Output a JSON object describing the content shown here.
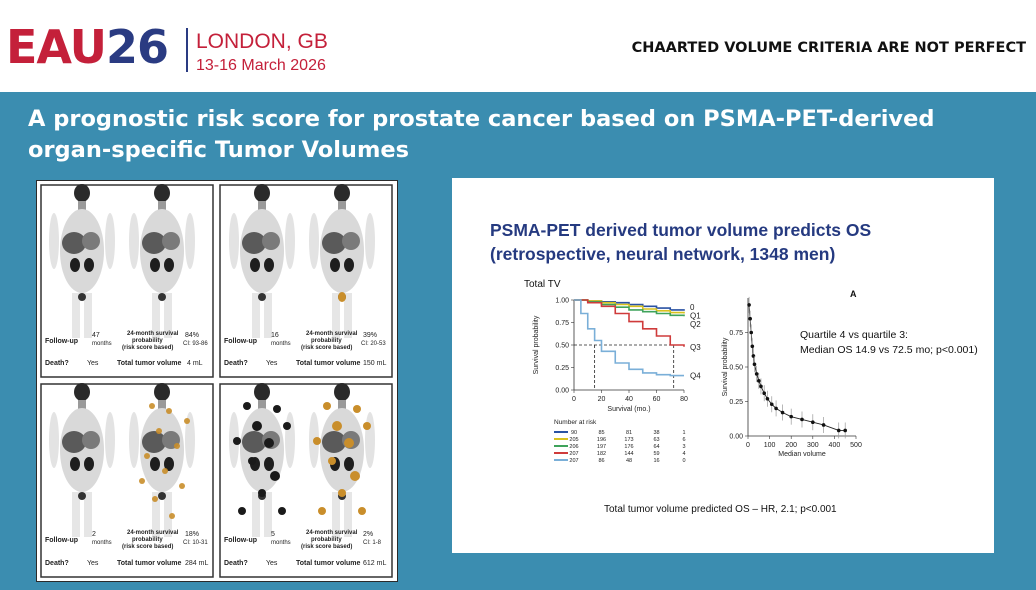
{
  "header": {
    "logo_eau": "EAU",
    "logo_num": "26",
    "city": "LONDON, GB",
    "dates": "13-16 March 2026",
    "headline": "CHAARTED VOLUME CRITERIA ARE NOT PERFECT"
  },
  "title": "A prognostic risk score for prostate cancer based on PSMA-PET-derived organ-specific Tumor Volumes",
  "pet_cases": [
    {
      "followup_label": "Follow-up",
      "followup_value": "47",
      "followup_unit": "months",
      "surv_label": "24-month survival probability (risk score based)",
      "surv_value": "84%",
      "ci": "CI: 93-86",
      "death_label": "Death?",
      "death_value": "Yes",
      "ttv_label": "Total tumor volume",
      "ttv_value": "4 mL"
    },
    {
      "followup_label": "Follow-up",
      "followup_value": "16",
      "followup_unit": "months",
      "surv_label": "24-month survival probability (risk score based)",
      "surv_value": "39%",
      "ci": "CI: 20-53",
      "death_label": "Death?",
      "death_value": "Yes",
      "ttv_label": "Total tumor volume",
      "ttv_value": "150 mL"
    },
    {
      "followup_label": "Follow-up",
      "followup_value": "2",
      "followup_unit": "months",
      "surv_label": "24-month survival probability (risk score based)",
      "surv_value": "18%",
      "ci": "CI: 10-31",
      "death_label": "Death?",
      "death_value": "Yes",
      "ttv_label": "Total tumor volume",
      "ttv_value": "284 mL"
    },
    {
      "followup_label": "Follow-up",
      "followup_value": "5",
      "followup_unit": "months",
      "surv_label": "24-month survival probability (risk score based)",
      "surv_value": "2%",
      "ci": "CI: 1-8",
      "death_label": "Death?",
      "death_value": "Yes",
      "ttv_label": "Total tumor volume",
      "ttv_value": "612 mL"
    }
  ],
  "slide": {
    "title_line1": "PSMA-PET derived tumor volume predicts OS",
    "title_line2": "(retrospective, neural network, 1348 men)",
    "km_title": "Total TV",
    "km_ylabel": "Survival probability",
    "km_xlabel": "Survival (mo.)",
    "km_xticks": [
      "0",
      "20",
      "40",
      "60",
      "80"
    ],
    "km_yticks": [
      "0.00",
      "0.25",
      "0.50",
      "0.75",
      "1.00"
    ],
    "group_labels": [
      "0",
      "Q1",
      "Q2",
      "Q3",
      "Q4"
    ],
    "number_at_risk_label": "Number at risk",
    "risk_table": [
      [
        "90",
        "85",
        "81",
        "38",
        "1"
      ],
      [
        "205",
        "196",
        "173",
        "63",
        "6"
      ],
      [
        "206",
        "197",
        "176",
        "64",
        "3"
      ],
      [
        "207",
        "182",
        "144",
        "59",
        "4"
      ],
      [
        "207",
        "86",
        "48",
        "16",
        "0"
      ]
    ],
    "series_colors": [
      "#2a52a3",
      "#d9c21f",
      "#3fa35b",
      "#cf3b3b",
      "#7aafd8"
    ],
    "panel_a_label": "A",
    "note_line1": "Quartile 4 vs quartile 3:",
    "note_line2": "Median OS 14.9 vs 72.5 mo; p<0.001)",
    "scatter_ylabel": "Survival probability",
    "scatter_xlabel": "Median volume",
    "scatter_xticks": [
      "0",
      "100",
      "200",
      "300",
      "400",
      "500"
    ],
    "scatter_yticks": [
      "0.00",
      "0.25",
      "0.50",
      "0.75"
    ],
    "bottom_text": "Total tumor volume predicted OS – HR, 2.1; p<0.001"
  },
  "chart_data": [
    {
      "type": "line",
      "title": "Total TV",
      "xlabel": "Survival (mo.)",
      "ylabel": "Survival probability",
      "xlim": [
        0,
        80
      ],
      "ylim": [
        0,
        1
      ],
      "series": [
        {
          "name": "0",
          "x": [
            0,
            10,
            20,
            30,
            40,
            50,
            60,
            70,
            80
          ],
          "values": [
            1.0,
            0.99,
            0.98,
            0.97,
            0.95,
            0.93,
            0.91,
            0.89,
            0.88
          ]
        },
        {
          "name": "Q1",
          "x": [
            0,
            10,
            20,
            30,
            40,
            50,
            60,
            70,
            80
          ],
          "values": [
            1.0,
            0.99,
            0.97,
            0.95,
            0.93,
            0.9,
            0.88,
            0.86,
            0.85
          ]
        },
        {
          "name": "Q2",
          "x": [
            0,
            10,
            20,
            30,
            40,
            50,
            60,
            70,
            80
          ],
          "values": [
            1.0,
            0.98,
            0.95,
            0.92,
            0.89,
            0.87,
            0.85,
            0.83,
            0.82
          ]
        },
        {
          "name": "Q3",
          "x": [
            0,
            10,
            20,
            30,
            40,
            50,
            60,
            70,
            80
          ],
          "values": [
            1.0,
            0.97,
            0.93,
            0.85,
            0.76,
            0.68,
            0.6,
            0.5,
            0.48
          ]
        },
        {
          "name": "Q4",
          "x": [
            0,
            5,
            10,
            15,
            20,
            30,
            40,
            50,
            60,
            70,
            80
          ],
          "values": [
            1.0,
            0.85,
            0.68,
            0.55,
            0.43,
            0.3,
            0.23,
            0.19,
            0.17,
            0.16,
            0.16
          ]
        }
      ]
    },
    {
      "type": "scatter",
      "xlabel": "Median volume",
      "ylabel": "Survival probability",
      "xlim": [
        0,
        500
      ],
      "ylim": [
        0,
        1
      ],
      "x": [
        5,
        10,
        15,
        20,
        25,
        30,
        40,
        50,
        60,
        75,
        90,
        110,
        130,
        160,
        200,
        250,
        300,
        350,
        420,
        450
      ],
      "values": [
        0.95,
        0.85,
        0.75,
        0.65,
        0.58,
        0.52,
        0.45,
        0.4,
        0.36,
        0.31,
        0.27,
        0.23,
        0.2,
        0.17,
        0.14,
        0.12,
        0.1,
        0.08,
        0.04,
        0.04
      ]
    }
  ]
}
